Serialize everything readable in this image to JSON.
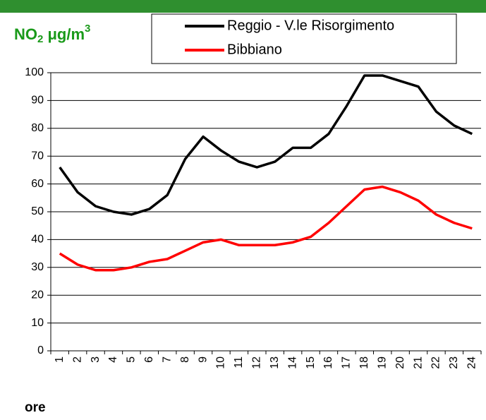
{
  "chart_data": {
    "type": "line",
    "y_label": {
      "main": "NO",
      "sub": "2",
      "unit": " μg/m",
      "sup": "3"
    },
    "x_label": "ore",
    "categories": [
      "1",
      "2",
      "3",
      "4",
      "5",
      "6",
      "7",
      "8",
      "9",
      "10",
      "11",
      "12",
      "13",
      "14",
      "15",
      "16",
      "17",
      "18",
      "19",
      "20",
      "21",
      "22",
      "23",
      "24"
    ],
    "series": [
      {
        "name": "Reggio - V.le Risorgimento",
        "color": "#000000",
        "values": [
          66,
          57,
          52,
          50,
          49,
          51,
          56,
          69,
          77,
          72,
          68,
          66,
          68,
          73,
          73,
          78,
          88,
          99,
          99,
          97,
          95,
          86,
          81,
          78
        ]
      },
      {
        "name": "Bibbiano",
        "color": "#ff0000",
        "values": [
          35,
          31,
          29,
          29,
          30,
          32,
          33,
          36,
          39,
          40,
          38,
          38,
          38,
          39,
          41,
          46,
          52,
          58,
          59,
          57,
          54,
          49,
          46,
          44
        ]
      }
    ],
    "ylim": [
      0,
      100
    ],
    "yticks": [
      0,
      10,
      20,
      30,
      40,
      50,
      60,
      70,
      80,
      90,
      100
    ],
    "grid": true
  }
}
